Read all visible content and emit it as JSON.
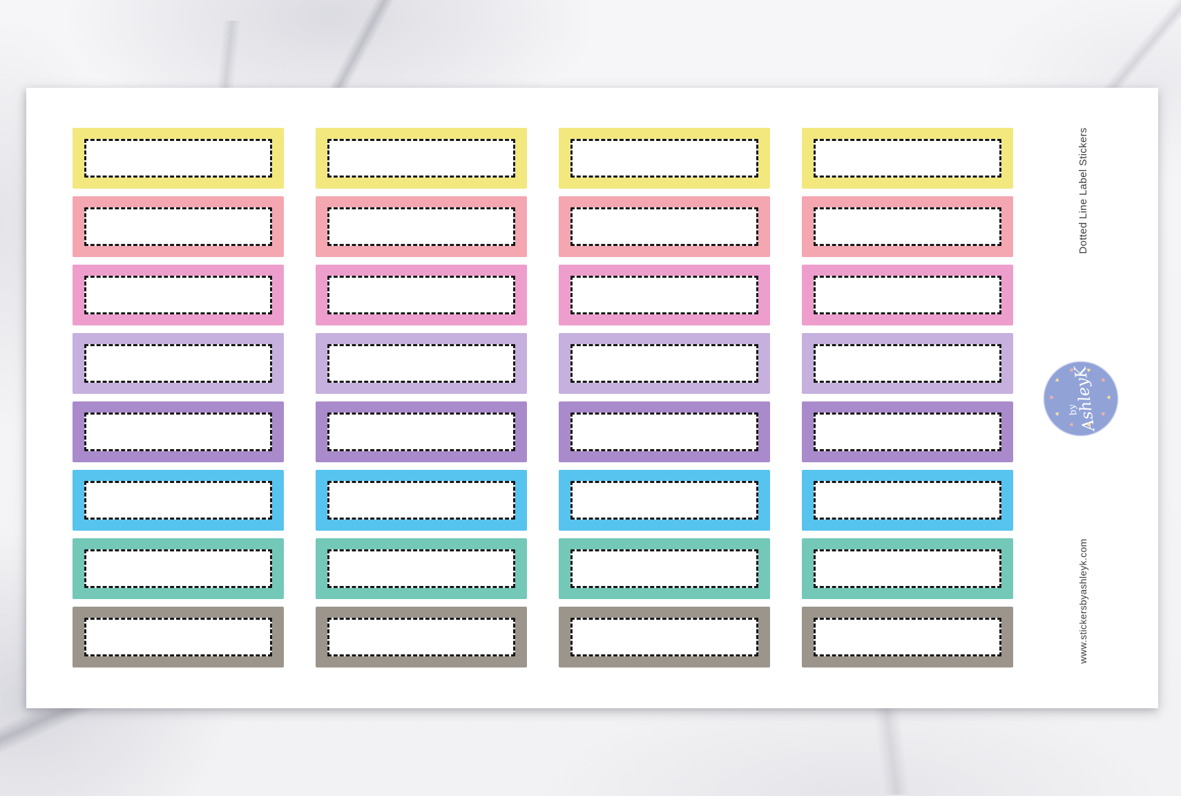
{
  "side": {
    "title": "Dotted Line Label Stickers",
    "website": "www.stickersbyashleyk.com",
    "text_color": "#3e3e3e"
  },
  "logo": {
    "line1": "by",
    "line2": "AshleyK",
    "circle_color": "#91a2d7",
    "text_color": "#ffffff",
    "heart_colors": [
      "#f3df9e",
      "#f3b3a8"
    ]
  },
  "sheet": {
    "background": "#ffffff"
  },
  "stickers": {
    "columns": 4,
    "dash_color": "#161616",
    "fill_color": "#ffffff",
    "rows": [
      {
        "name": "pastel-yellow",
        "color": "#f2e87e"
      },
      {
        "name": "pastel-salmon",
        "color": "#f4a6b1"
      },
      {
        "name": "pastel-pink",
        "color": "#ee9ecd"
      },
      {
        "name": "pastel-lilac",
        "color": "#c5b0de"
      },
      {
        "name": "pastel-purple",
        "color": "#a98aca"
      },
      {
        "name": "pastel-blue",
        "color": "#57c3ef"
      },
      {
        "name": "pastel-teal",
        "color": "#73c8b8"
      },
      {
        "name": "pastel-taupe",
        "color": "#9b958c"
      }
    ]
  }
}
